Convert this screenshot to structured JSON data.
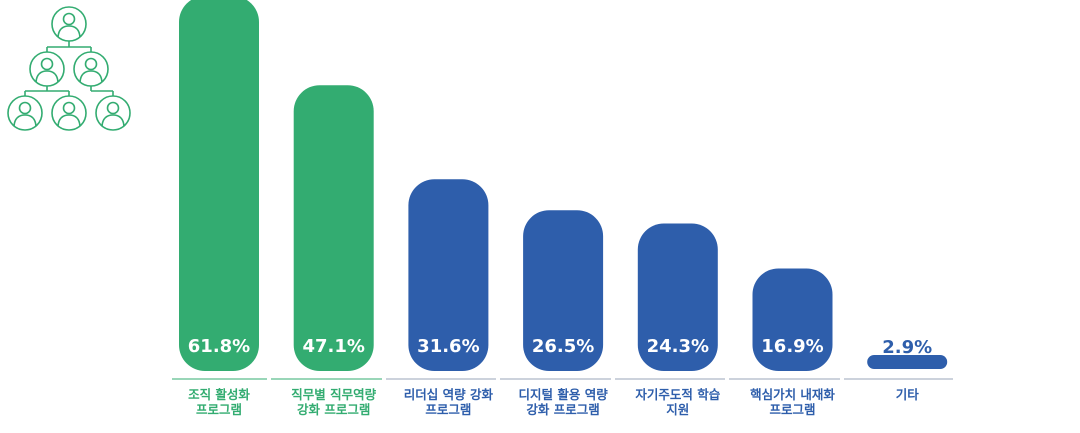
{
  "colors": {
    "green": "#33ac71",
    "blue": "#2e5eab",
    "axis": "#9aa5b8",
    "value_text": "#ffffff"
  },
  "icon": {
    "name": "org-chart-people-icon",
    "color": "#33ac71"
  },
  "chart_data": {
    "type": "bar",
    "categories": [
      [
        "조직 활성화",
        "프로그램"
      ],
      [
        "직무별 직무역량",
        "강화 프로그램"
      ],
      [
        "리더십 역량 강화",
        "프로그램"
      ],
      [
        "디지털 활용 역량",
        "강화 프로그램"
      ],
      [
        "자기주도적 학습",
        "지원"
      ],
      [
        "핵심가치 내재화",
        "프로그램"
      ],
      [
        "기타"
      ]
    ],
    "values": [
      61.8,
      47.1,
      31.6,
      26.5,
      24.3,
      16.9,
      2.9
    ],
    "value_labels": [
      "61.8%",
      "47.1%",
      "31.6%",
      "26.5%",
      "24.3%",
      "16.9%",
      "2.9%"
    ],
    "bar_colors": [
      "green",
      "green",
      "blue",
      "blue",
      "blue",
      "blue",
      "blue"
    ],
    "ylim": [
      0,
      61.8
    ],
    "title": "",
    "xlabel": "",
    "ylabel": "",
    "grid": false,
    "legend": "none"
  }
}
